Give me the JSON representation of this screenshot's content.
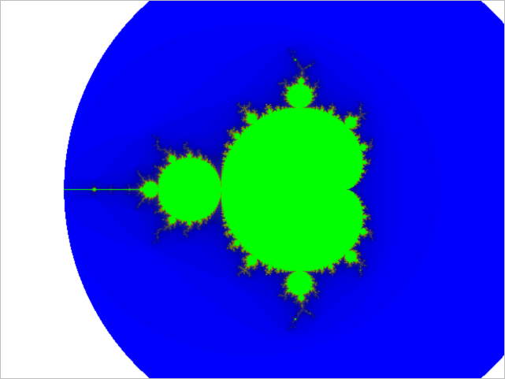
{
  "fractal": {
    "set": "mandelbrot",
    "colors": {
      "background": "#ffffff",
      "inside": "#00ff00",
      "outer_band": "#0000ff",
      "boundary": "#8a8a00"
    },
    "complex_window": {
      "re_min": -2.5,
      "re_max": 1.5,
      "im_min": -1.5,
      "im_max": 1.5
    },
    "max_iterations": 200
  }
}
